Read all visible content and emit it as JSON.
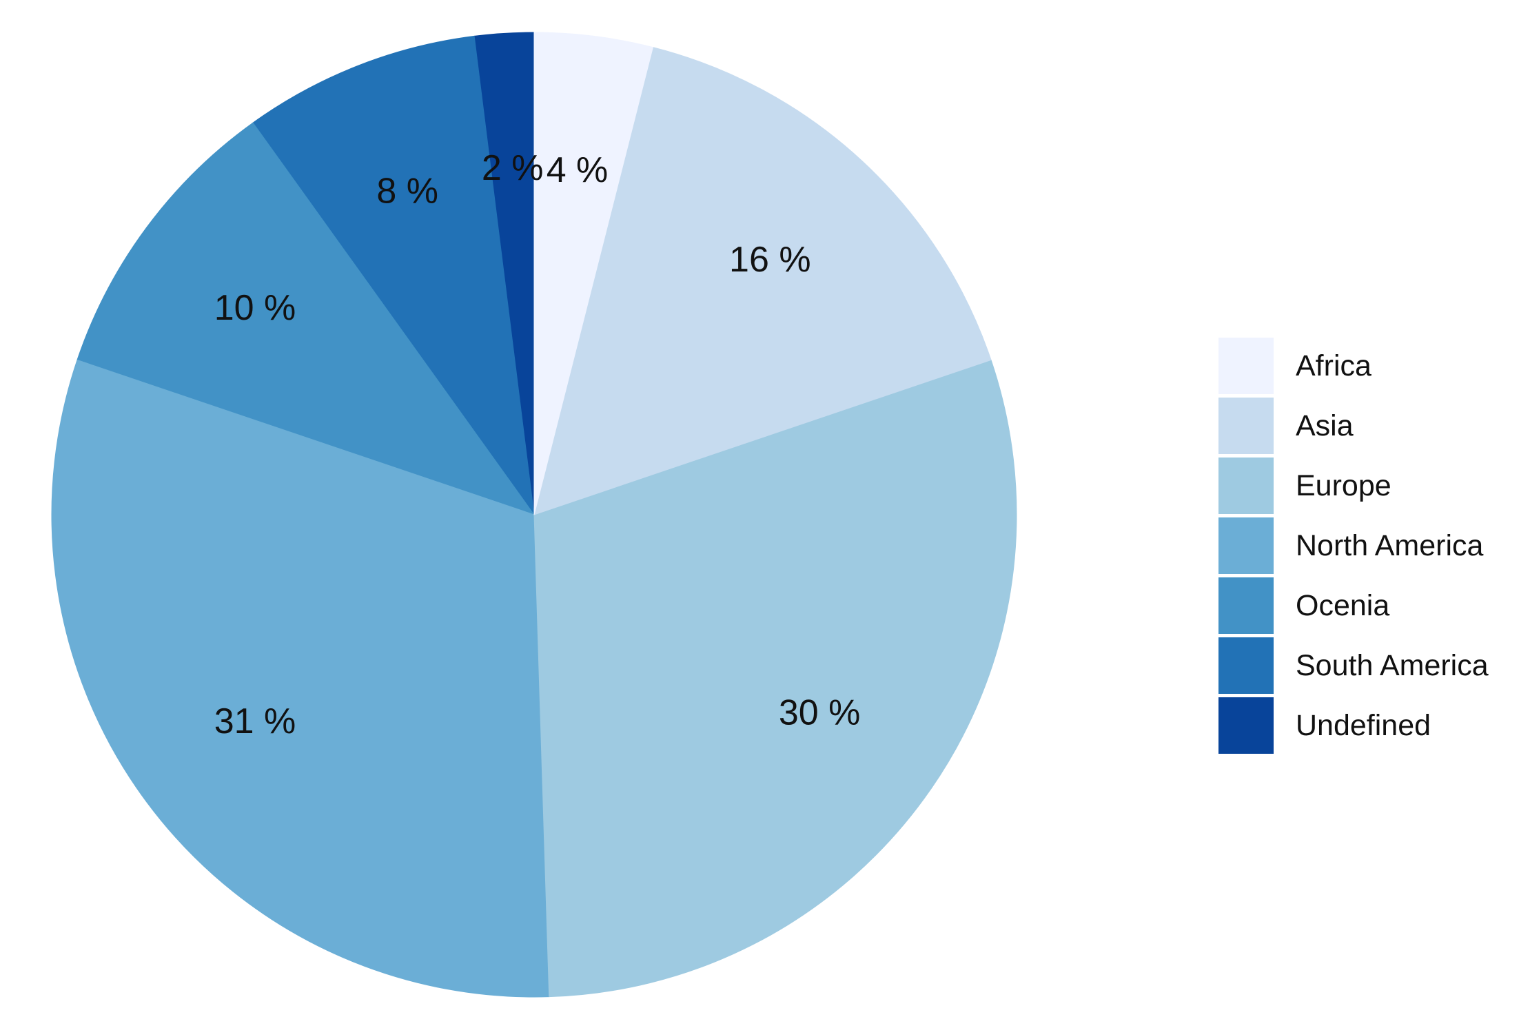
{
  "chart_data": {
    "type": "pie",
    "start": "12 o'clock",
    "direction": "counterclockwise",
    "legend_position": "right",
    "slices": [
      {
        "name": "Undefined",
        "value": 2,
        "label": "2 %",
        "color": "#08449a"
      },
      {
        "name": "South America",
        "value": 8,
        "label": "8 %",
        "color": "#2272b6"
      },
      {
        "name": "Ocenia",
        "value": 10,
        "label": "10 %",
        "color": "#4292c6"
      },
      {
        "name": "North America",
        "value": 31,
        "label": "31 %",
        "color": "#6baed6"
      },
      {
        "name": "Europe",
        "value": 30,
        "label": "30 %",
        "color": "#9ecae1"
      },
      {
        "name": "Asia",
        "value": 16,
        "label": "16 %",
        "color": "#c6dbef"
      },
      {
        "name": "Africa",
        "value": 4,
        "label": "4 %",
        "color": "#eff3ff"
      }
    ],
    "legend": [
      "Africa",
      "Asia",
      "Europe",
      "North America",
      "Ocenia",
      "South America",
      "Undefined"
    ]
  }
}
